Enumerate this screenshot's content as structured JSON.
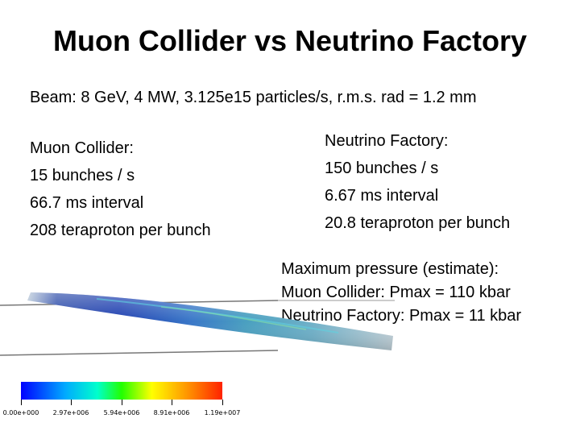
{
  "title": "Muon Collider vs Neutrino Factory",
  "beam": "Beam: 8 GeV, 4 MW, 3.125e15 particles/s, r.m.s. rad = 1.2 mm",
  "muon_collider": [
    "Muon Collider:",
    "15 bunches / s",
    "66.7 ms interval",
    "208 teraproton per bunch"
  ],
  "neutrino_factory": [
    "Neutrino Factory:",
    "150 bunches / s",
    "6.67 ms interval",
    "20.8 teraproton per bunch"
  ],
  "pressure": [
    "Maximum pressure (estimate):",
    "Muon Collider:  Pmax = 110 kbar",
    "Neutrino Factory: Pmax = 11 kbar"
  ],
  "colorbar": {
    "labels": [
      "0.00e+000",
      "2.97e+006",
      "5.94e+006",
      "8.91e+006",
      "1.19e+007"
    ],
    "colors": [
      "#0000ff",
      "#00aaff",
      "#00ffcc",
      "#22ff00",
      "#ffff00",
      "#ff9900",
      "#ff2200"
    ]
  }
}
